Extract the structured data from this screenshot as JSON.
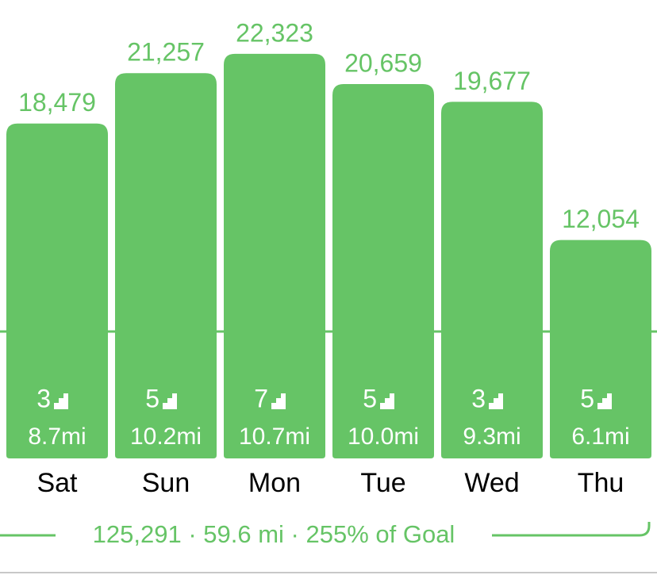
{
  "chart_data": {
    "type": "bar",
    "categories": [
      "Sat",
      "Sun",
      "Mon",
      "Tue",
      "Wed",
      "Thu"
    ],
    "values": [
      18479,
      21257,
      22323,
      20659,
      19677,
      12054
    ],
    "value_labels": [
      "18,479",
      "21,257",
      "22,323",
      "20,659",
      "19,677",
      "12,054"
    ],
    "floors": [
      3,
      5,
      7,
      5,
      3,
      5
    ],
    "distances": [
      "8.7mi",
      "10.2mi",
      "10.7mi",
      "10.0mi",
      "9.3mi",
      "6.1mi"
    ],
    "summary": "125,291 · 59.6 mi · 255% of Goal",
    "goal": 7000,
    "ylim": [
      0,
      25000
    ],
    "color": "#66c466"
  }
}
